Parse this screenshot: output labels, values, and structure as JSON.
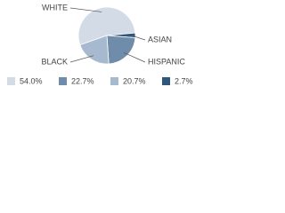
{
  "chart_data": {
    "type": "pie",
    "categories": [
      "WHITE",
      "HISPANIC",
      "BLACK",
      "ASIAN"
    ],
    "values": [
      54.0,
      22.7,
      20.7,
      2.7
    ],
    "value_labels": [
      "54.0%",
      "22.7%",
      "20.7%",
      "2.7%"
    ],
    "colors": [
      "#d3dbe6",
      "#6f8cab",
      "#a7b9cf",
      "#2f577c"
    ]
  }
}
